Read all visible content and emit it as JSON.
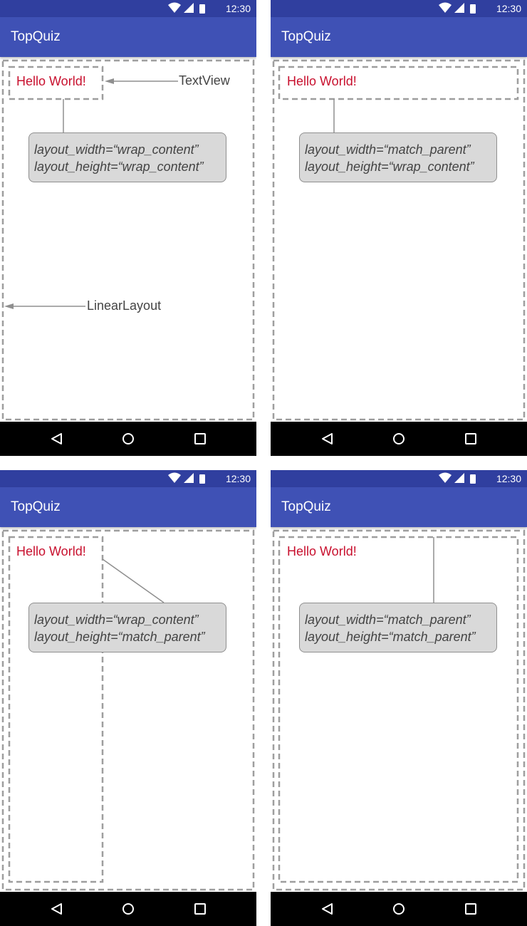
{
  "status_bar": {
    "time": "12:30",
    "icons": [
      "wifi-icon",
      "cell-signal-icon",
      "battery-icon"
    ]
  },
  "app_bar": {
    "title": "TopQuiz"
  },
  "nav_bar": {
    "icons": [
      "back-icon",
      "home-icon",
      "recents-icon"
    ]
  },
  "text_view": {
    "text": "Hello World!"
  },
  "annotations": {
    "text_view": "TextView",
    "linear_layout": "LinearLayout"
  },
  "panels": [
    {
      "layout_width": "layout_width=“wrap_content”",
      "layout_height": "layout_height=“wrap_content”"
    },
    {
      "layout_width": "layout_width=“match_parent”",
      "layout_height": "layout_height=“wrap_content”"
    },
    {
      "layout_width": "layout_width=“wrap_content”",
      "layout_height": "layout_height=“match_parent”"
    },
    {
      "layout_width": "layout_width=“match_parent”",
      "layout_height": "layout_height=“match_parent”"
    }
  ],
  "colors": {
    "status_bar": "#303f9f",
    "app_bar": "#3f51b5",
    "text_view_text": "#c8102e",
    "dashed_border": "#9e9e9e",
    "callout_bg": "#d9d9d9",
    "nav_bar": "#000000"
  }
}
